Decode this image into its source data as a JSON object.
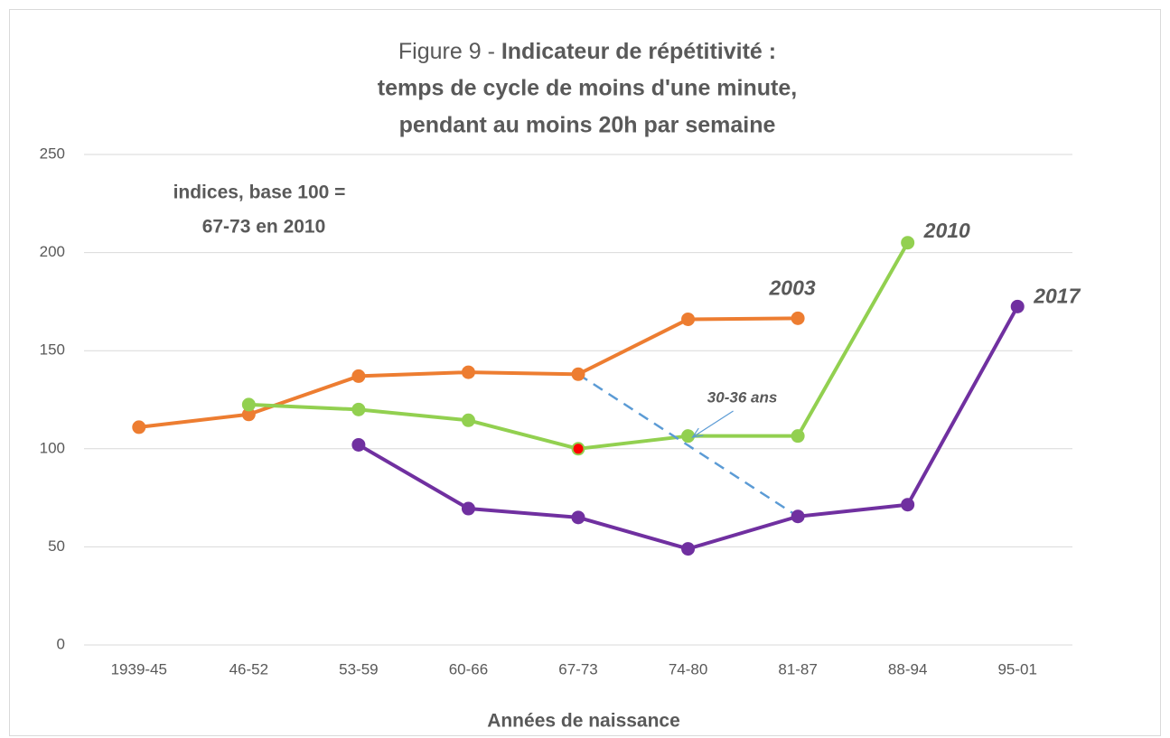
{
  "chart_data": {
    "type": "line",
    "title_prefix": "Figure 9 -",
    "title_lines": [
      "Indicateur de répétitivité :",
      "temps de cycle de moins d'une minute,",
      "pendant au moins 20h par semaine"
    ],
    "note_lines": [
      "indices, base 100 =",
      "67-73 en 2010"
    ],
    "xlabel": "Années de naissance",
    "categories": [
      "1939-45",
      "46-52",
      "53-59",
      "60-66",
      "67-73",
      "74-80",
      "81-87",
      "88-94",
      "95-01"
    ],
    "series": [
      {
        "name": "2003",
        "color": "#ED7D31",
        "values": [
          111,
          117.5,
          137,
          139,
          138,
          166,
          166.5,
          null,
          null
        ]
      },
      {
        "name": "2010",
        "color": "#92D050",
        "values": [
          null,
          122.5,
          120,
          114.5,
          100,
          106.5,
          106.5,
          205,
          null
        ],
        "highlight_index": 4,
        "highlight_color": "#FF0000"
      },
      {
        "name": "2017",
        "color": "#7030A0",
        "values": [
          null,
          null,
          102,
          69.5,
          65,
          49,
          65.5,
          71.5,
          172.5
        ]
      }
    ],
    "annotation": {
      "text": "30-36 ans",
      "color": "#5B9BD5",
      "from_category": "67-73",
      "from_value": 138,
      "to_category": "81-87",
      "to_value": 65.5
    },
    "ylim": [
      0,
      250
    ],
    "yticks": [
      0,
      50,
      100,
      150,
      200,
      250
    ],
    "grid": true
  }
}
